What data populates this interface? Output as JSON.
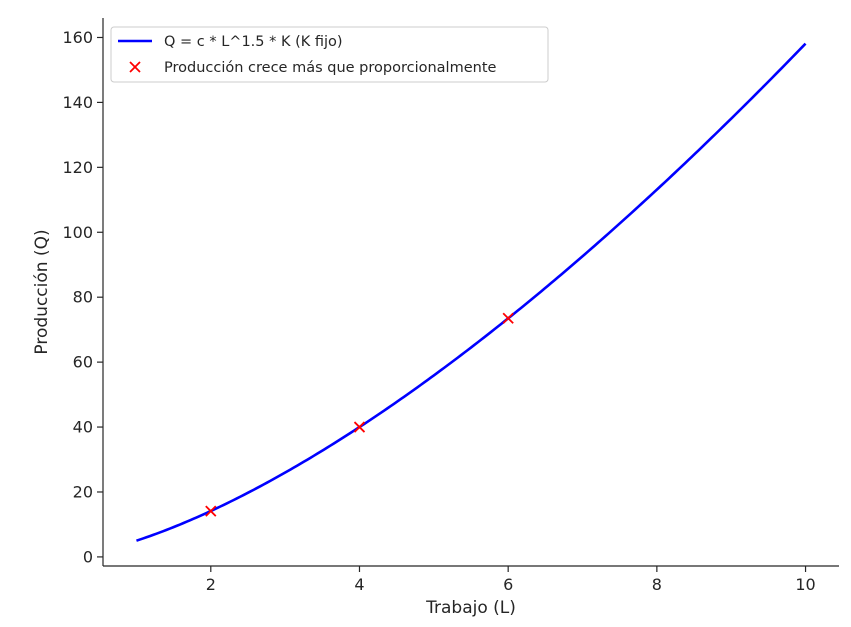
{
  "chart_data": {
    "type": "line",
    "title": "",
    "xlabel": "Trabajo (L)",
    "ylabel": "Producción (Q)",
    "xlim": [
      0.55,
      10.45
    ],
    "ylim": [
      -2.8,
      166
    ],
    "xticks": [
      2,
      4,
      6,
      8,
      10
    ],
    "yticks": [
      0,
      20,
      40,
      60,
      80,
      100,
      120,
      140,
      160
    ],
    "grid": false,
    "legend_position": "top-left",
    "series": [
      {
        "name": "Q = c * L^1.5 * K (K fijo)",
        "type": "line",
        "color": "#0000ff",
        "formula": "5 * L^1.5",
        "x_range": [
          1,
          10
        ],
        "x": [
          1,
          2,
          3,
          4,
          5,
          6,
          7,
          8,
          9,
          10
        ],
        "y": [
          5,
          14.1,
          26,
          40,
          55.9,
          73.5,
          92.6,
          113.1,
          135,
          158.1
        ]
      },
      {
        "name": "Producción crece más que proporcionalmente",
        "type": "scatter",
        "marker": "x",
        "color": "#ff0000",
        "x": [
          2,
          4,
          6
        ],
        "y": [
          14.1,
          40,
          73.5
        ]
      }
    ]
  }
}
